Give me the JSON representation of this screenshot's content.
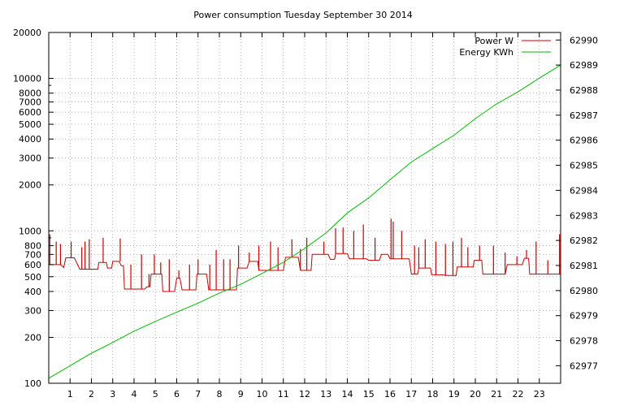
{
  "chart_data": {
    "type": "line",
    "title": "Power consumption Tuesday September 30 2014",
    "x": {
      "range": [
        0,
        24
      ],
      "ticks": [
        1,
        2,
        3,
        4,
        5,
        6,
        7,
        8,
        9,
        10,
        11,
        12,
        13,
        14,
        15,
        16,
        17,
        18,
        19,
        20,
        21,
        22,
        23
      ]
    },
    "y_left": {
      "scale": "log",
      "range": [
        100,
        20000
      ],
      "ticks": [
        100,
        200,
        300,
        400,
        500,
        600,
        700,
        800,
        1000,
        2000,
        3000,
        4000,
        5000,
        6000,
        7000,
        8000,
        10000,
        20000
      ]
    },
    "y_right": {
      "range": [
        62976.3,
        62990.3
      ],
      "ticks": [
        62977,
        62978,
        62979,
        62980,
        62981,
        62982,
        62983,
        62984,
        62985,
        62986,
        62987,
        62988,
        62989,
        62990
      ]
    },
    "grid": true,
    "legend_position": "top-right",
    "series": [
      {
        "name": "Power W",
        "axis": "left",
        "color": "#cc0000",
        "base": [
          [
            0,
            600
          ],
          [
            0.55,
            600
          ],
          [
            0.7,
            575
          ],
          [
            0.8,
            665
          ],
          [
            1.2,
            665
          ],
          [
            1.45,
            560
          ],
          [
            2.3,
            560
          ],
          [
            2.35,
            620
          ],
          [
            2.7,
            620
          ],
          [
            2.75,
            570
          ],
          [
            2.95,
            570
          ],
          [
            3.0,
            630
          ],
          [
            3.3,
            630
          ],
          [
            3.4,
            590
          ],
          [
            3.5,
            590
          ],
          [
            3.55,
            415
          ],
          [
            4.5,
            415
          ],
          [
            4.6,
            430
          ],
          [
            4.75,
            430
          ],
          [
            4.8,
            520
          ],
          [
            5.3,
            520
          ],
          [
            5.35,
            400
          ],
          [
            5.9,
            400
          ],
          [
            6.0,
            490
          ],
          [
            6.15,
            490
          ],
          [
            6.25,
            410
          ],
          [
            6.9,
            410
          ],
          [
            6.95,
            520
          ],
          [
            7.4,
            520
          ],
          [
            7.5,
            410
          ],
          [
            8.8,
            410
          ],
          [
            8.85,
            570
          ],
          [
            9.3,
            570
          ],
          [
            9.4,
            630
          ],
          [
            9.8,
            630
          ],
          [
            9.85,
            550
          ],
          [
            11.0,
            550
          ],
          [
            11.1,
            670
          ],
          [
            11.7,
            670
          ],
          [
            11.8,
            550
          ],
          [
            12.3,
            550
          ],
          [
            12.35,
            700
          ],
          [
            13.1,
            700
          ],
          [
            13.2,
            650
          ],
          [
            13.4,
            650
          ],
          [
            13.45,
            710
          ],
          [
            14.0,
            710
          ],
          [
            14.1,
            655
          ],
          [
            14.9,
            655
          ],
          [
            15.0,
            640
          ],
          [
            15.5,
            640
          ],
          [
            15.6,
            700
          ],
          [
            15.9,
            700
          ],
          [
            16.0,
            655
          ],
          [
            16.9,
            655
          ],
          [
            17.0,
            520
          ],
          [
            17.3,
            520
          ],
          [
            17.35,
            570
          ],
          [
            17.9,
            570
          ],
          [
            17.95,
            515
          ],
          [
            18.5,
            515
          ],
          [
            18.6,
            510
          ],
          [
            19.1,
            510
          ],
          [
            19.15,
            580
          ],
          [
            19.9,
            580
          ],
          [
            19.95,
            640
          ],
          [
            20.3,
            640
          ],
          [
            20.35,
            520
          ],
          [
            21.4,
            520
          ],
          [
            21.5,
            600
          ],
          [
            22.2,
            600
          ],
          [
            22.3,
            660
          ],
          [
            22.5,
            660
          ],
          [
            22.55,
            520
          ],
          [
            24.0,
            520
          ]
        ],
        "spikes": [
          [
            0.05,
            950
          ],
          [
            0.35,
            850
          ],
          [
            0.55,
            820
          ],
          [
            1.05,
            850
          ],
          [
            1.55,
            780
          ],
          [
            1.7,
            850
          ],
          [
            1.9,
            880
          ],
          [
            2.55,
            900
          ],
          [
            3.35,
            890
          ],
          [
            3.85,
            600
          ],
          [
            4.35,
            700
          ],
          [
            4.7,
            520
          ],
          [
            4.95,
            700
          ],
          [
            5.25,
            620
          ],
          [
            5.65,
            650
          ],
          [
            6.1,
            550
          ],
          [
            6.6,
            600
          ],
          [
            7.0,
            650
          ],
          [
            7.55,
            600
          ],
          [
            7.85,
            750
          ],
          [
            8.2,
            650
          ],
          [
            8.5,
            650
          ],
          [
            8.9,
            800
          ],
          [
            9.4,
            720
          ],
          [
            9.85,
            800
          ],
          [
            10.4,
            850
          ],
          [
            10.75,
            780
          ],
          [
            11.4,
            880
          ],
          [
            11.8,
            760
          ],
          [
            12.1,
            900
          ],
          [
            12.9,
            850
          ],
          [
            13.45,
            1040
          ],
          [
            13.8,
            1050
          ],
          [
            14.3,
            1000
          ],
          [
            14.75,
            1100
          ],
          [
            15.3,
            900
          ],
          [
            16.05,
            1200
          ],
          [
            16.15,
            1150
          ],
          [
            16.55,
            1000
          ],
          [
            17.15,
            800
          ],
          [
            17.35,
            780
          ],
          [
            17.65,
            880
          ],
          [
            18.15,
            850
          ],
          [
            18.6,
            820
          ],
          [
            18.95,
            850
          ],
          [
            19.35,
            900
          ],
          [
            19.65,
            780
          ],
          [
            20.2,
            800
          ],
          [
            20.85,
            800
          ],
          [
            21.4,
            720
          ],
          [
            21.95,
            680
          ],
          [
            22.4,
            750
          ],
          [
            22.85,
            850
          ],
          [
            23.4,
            640
          ],
          [
            23.95,
            950
          ]
        ]
      },
      {
        "name": "Energy KWh",
        "axis": "right",
        "color": "#00bb00",
        "points": [
          [
            0,
            62976.5
          ],
          [
            1,
            62977.0
          ],
          [
            2,
            62977.5
          ],
          [
            3,
            62977.93
          ],
          [
            4,
            62978.38
          ],
          [
            5,
            62978.77
          ],
          [
            6,
            62979.14
          ],
          [
            7,
            62979.5
          ],
          [
            8,
            62979.9
          ],
          [
            9,
            62980.25
          ],
          [
            10,
            62980.68
          ],
          [
            11,
            62981.13
          ],
          [
            12,
            62981.68
          ],
          [
            13,
            62982.3
          ],
          [
            14,
            62983.1
          ],
          [
            15,
            62983.7
          ],
          [
            16,
            62984.42
          ],
          [
            17,
            62985.13
          ],
          [
            18,
            62985.67
          ],
          [
            19,
            62986.2
          ],
          [
            20,
            62986.86
          ],
          [
            21,
            62987.45
          ],
          [
            22,
            62987.93
          ],
          [
            23,
            62988.48
          ],
          [
            24,
            62989.0
          ]
        ]
      }
    ]
  }
}
